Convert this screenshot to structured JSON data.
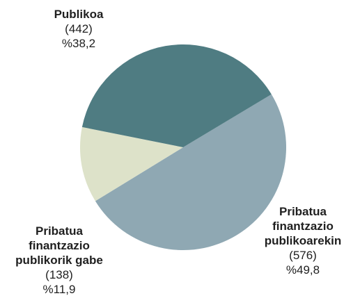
{
  "chart_data": {
    "type": "pie",
    "slices": [
      {
        "label": "Publikoa",
        "count": "(442)",
        "percent_text": "%38,2",
        "value": 38.2,
        "color": "#4f7c82"
      },
      {
        "label": "Pribatua finantzazio publikoarekin",
        "count": "(576)",
        "percent_text": "%49,8",
        "value": 49.8,
        "color": "#8fa8b3"
      },
      {
        "label": "Pribatua finantzazio publikorik gabe",
        "count": "(138)",
        "percent_text": "%11,9",
        "value": 11.9,
        "color": "#dde2c9"
      }
    ],
    "label_lines": {
      "s0": [
        "Publikoa"
      ],
      "s1": [
        "Pribatua",
        "finantzazio",
        "publikoarekin"
      ],
      "s2": [
        "Pribatua",
        "finantzazio",
        "publikorik gabe"
      ]
    }
  }
}
